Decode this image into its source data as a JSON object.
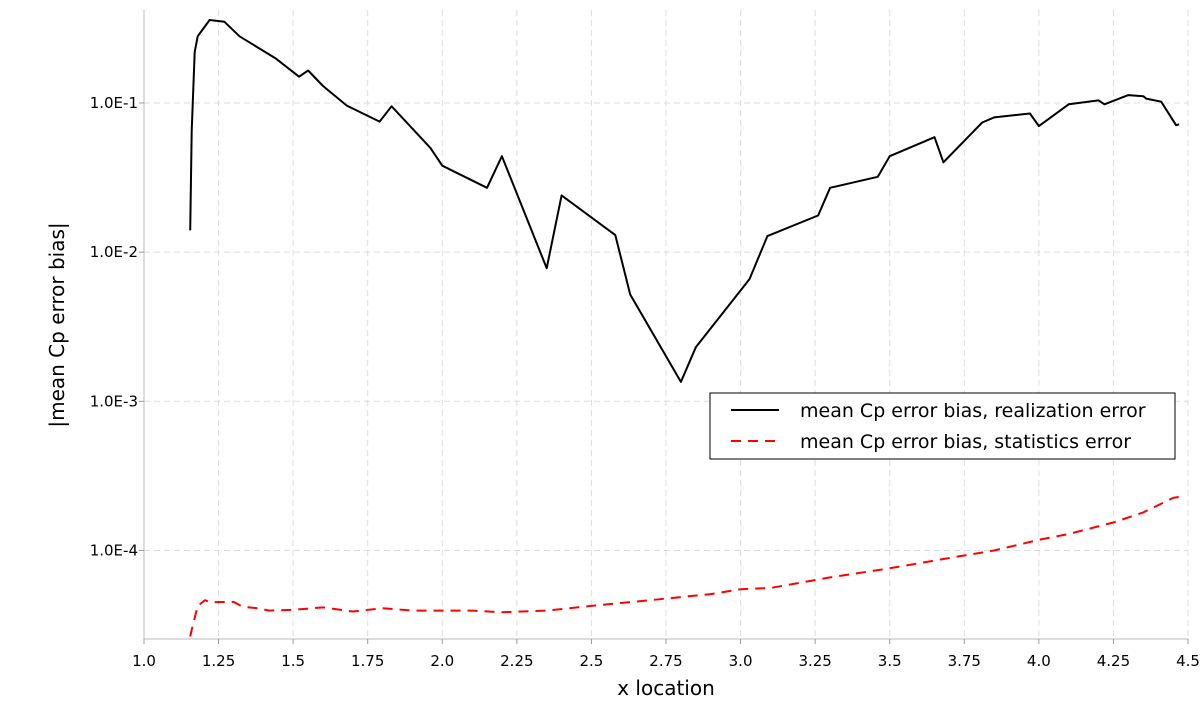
{
  "chart_data": {
    "type": "line",
    "xlabel": "x location",
    "ylabel": "|mean Cp error bias|",
    "xscale": "linear",
    "yscale": "log",
    "xlim": [
      1.0,
      4.5
    ],
    "ylim": [
      2.55e-05,
      0.42
    ],
    "grid": true,
    "legend_position": "right-middle",
    "x_ticks": [
      {
        "value": 1.0,
        "label": "1.0"
      },
      {
        "value": 1.25,
        "label": "1.25"
      },
      {
        "value": 1.5,
        "label": "1.5"
      },
      {
        "value": 1.75,
        "label": "1.75"
      },
      {
        "value": 2.0,
        "label": "2.0"
      },
      {
        "value": 2.25,
        "label": "2.25"
      },
      {
        "value": 2.5,
        "label": "2.5"
      },
      {
        "value": 2.75,
        "label": "2.75"
      },
      {
        "value": 3.0,
        "label": "3.0"
      },
      {
        "value": 3.25,
        "label": "3.25"
      },
      {
        "value": 3.5,
        "label": "3.5"
      },
      {
        "value": 3.75,
        "label": "3.75"
      },
      {
        "value": 4.0,
        "label": "4.0"
      },
      {
        "value": 4.25,
        "label": "4.25"
      },
      {
        "value": 4.5,
        "label": "4.5"
      }
    ],
    "y_ticks": [
      {
        "value": 0.1,
        "label": "1.0E-1"
      },
      {
        "value": 0.01,
        "label": "1.0E-2"
      },
      {
        "value": 0.001,
        "label": "1.0E-3"
      },
      {
        "value": 0.0001,
        "label": "1.0E-4"
      }
    ],
    "series": [
      {
        "name": "mean Cp error bias, realization error",
        "color": "#000000",
        "dash": "solid",
        "points": [
          [
            1.155,
            0.014
          ],
          [
            1.16,
            0.065
          ],
          [
            1.17,
            0.22
          ],
          [
            1.18,
            0.28
          ],
          [
            1.22,
            0.36
          ],
          [
            1.27,
            0.35
          ],
          [
            1.32,
            0.28
          ],
          [
            1.44,
            0.2
          ],
          [
            1.52,
            0.15
          ],
          [
            1.55,
            0.165
          ],
          [
            1.6,
            0.13
          ],
          [
            1.68,
            0.096
          ],
          [
            1.79,
            0.075
          ],
          [
            1.83,
            0.095
          ],
          [
            1.96,
            0.05
          ],
          [
            2.0,
            0.038
          ],
          [
            2.15,
            0.027
          ],
          [
            2.2,
            0.044
          ],
          [
            2.35,
            0.0078
          ],
          [
            2.4,
            0.024
          ],
          [
            2.58,
            0.013
          ],
          [
            2.63,
            0.0052
          ],
          [
            2.8,
            0.00135
          ],
          [
            2.85,
            0.0023
          ],
          [
            3.03,
            0.0066
          ],
          [
            3.09,
            0.0128
          ],
          [
            3.26,
            0.0176
          ],
          [
            3.3,
            0.027
          ],
          [
            3.46,
            0.032
          ],
          [
            3.5,
            0.044
          ],
          [
            3.65,
            0.059
          ],
          [
            3.68,
            0.04
          ],
          [
            3.81,
            0.074
          ],
          [
            3.85,
            0.08
          ],
          [
            3.97,
            0.085
          ],
          [
            4.0,
            0.07
          ],
          [
            4.1,
            0.098
          ],
          [
            4.2,
            0.104
          ],
          [
            4.22,
            0.098
          ],
          [
            4.3,
            0.113
          ],
          [
            4.35,
            0.111
          ],
          [
            4.36,
            0.107
          ],
          [
            4.41,
            0.102
          ],
          [
            4.46,
            0.071
          ],
          [
            4.47,
            0.072
          ]
        ]
      },
      {
        "name": "mean Cp error bias, statistics error",
        "color": "#ff0000",
        "dash": "dashed",
        "points": [
          [
            1.155,
            2.65e-05
          ],
          [
            1.162,
            3.05e-05
          ],
          [
            1.18,
            4.25e-05
          ],
          [
            1.205,
            4.65e-05
          ],
          [
            1.22,
            4.5e-05
          ],
          [
            1.3,
            4.52e-05
          ],
          [
            1.33,
            4.2e-05
          ],
          [
            1.38,
            4.1e-05
          ],
          [
            1.42,
            3.95e-05
          ],
          [
            1.5,
            4e-05
          ],
          [
            1.6,
            4.15e-05
          ],
          [
            1.7,
            3.9e-05
          ],
          [
            1.8,
            4.1e-05
          ],
          [
            1.9,
            3.95e-05
          ],
          [
            2.0,
            3.95e-05
          ],
          [
            2.1,
            3.95e-05
          ],
          [
            2.2,
            3.85e-05
          ],
          [
            2.35,
            3.95e-05
          ],
          [
            2.5,
            4.25e-05
          ],
          [
            2.7,
            4.65e-05
          ],
          [
            2.9,
            5.1e-05
          ],
          [
            3.0,
            5.5e-05
          ],
          [
            3.1,
            5.6e-05
          ],
          [
            3.3,
            6.6e-05
          ],
          [
            3.5,
            7.6e-05
          ],
          [
            3.7,
            8.9e-05
          ],
          [
            3.85,
            0.0001
          ],
          [
            4.0,
            0.000118
          ],
          [
            4.1,
            0.000129
          ],
          [
            4.25,
            0.000154
          ],
          [
            4.35,
            0.00018
          ],
          [
            4.45,
            0.000225
          ],
          [
            4.48,
            0.00023
          ]
        ]
      }
    ]
  }
}
